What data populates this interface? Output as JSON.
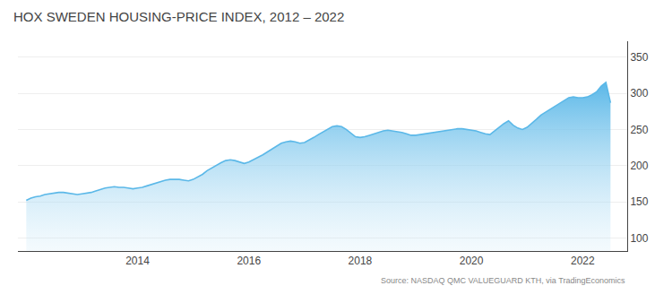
{
  "chart_data": {
    "type": "area",
    "title": "HOX SWEDEN HOUSING-PRICE INDEX, 2012 – 2022",
    "annotations": [
      "Source: NASDAQ QMC VALUEGUARD KTH, via TradingEconomics"
    ],
    "color": "#5BB8E8",
    "x": [
      2012.0,
      2012.083,
      2012.167,
      2012.25,
      2012.333,
      2012.417,
      2012.5,
      2012.583,
      2012.667,
      2012.75,
      2012.833,
      2012.917,
      2013.0,
      2013.083,
      2013.167,
      2013.25,
      2013.333,
      2013.417,
      2013.5,
      2013.583,
      2013.667,
      2013.75,
      2013.833,
      2013.917,
      2014.0,
      2014.083,
      2014.167,
      2014.25,
      2014.333,
      2014.417,
      2014.5,
      2014.583,
      2014.667,
      2014.75,
      2014.833,
      2014.917,
      2015.0,
      2015.083,
      2015.167,
      2015.25,
      2015.333,
      2015.417,
      2015.5,
      2015.583,
      2015.667,
      2015.75,
      2015.833,
      2015.917,
      2016.0,
      2016.083,
      2016.167,
      2016.25,
      2016.333,
      2016.417,
      2016.5,
      2016.583,
      2016.667,
      2016.75,
      2016.833,
      2016.917,
      2017.0,
      2017.083,
      2017.167,
      2017.25,
      2017.333,
      2017.417,
      2017.5,
      2017.583,
      2017.667,
      2017.75,
      2017.833,
      2017.917,
      2018.0,
      2018.083,
      2018.167,
      2018.25,
      2018.333,
      2018.417,
      2018.5,
      2018.583,
      2018.667,
      2018.75,
      2018.833,
      2018.917,
      2019.0,
      2019.083,
      2019.167,
      2019.25,
      2019.333,
      2019.417,
      2019.5,
      2019.583,
      2019.667,
      2019.75,
      2019.833,
      2019.917,
      2020.0,
      2020.083,
      2020.167,
      2020.25,
      2020.333,
      2020.417,
      2020.5,
      2020.583,
      2020.667,
      2020.75,
      2020.833,
      2020.917,
      2021.0,
      2021.083,
      2021.167,
      2021.25,
      2021.333,
      2021.417,
      2021.5,
      2021.583,
      2021.667,
      2021.75,
      2021.833,
      2021.917,
      2022.0,
      2022.083,
      2022.167,
      2022.25,
      2022.333,
      2022.417,
      2022.5
    ],
    "values": [
      152,
      155,
      157,
      158,
      160,
      161,
      162,
      163,
      163,
      162,
      161,
      160,
      161,
      162,
      163,
      165,
      167,
      169,
      170,
      171,
      170,
      170,
      169,
      168,
      169,
      170,
      172,
      174,
      176,
      178,
      180,
      181,
      181,
      181,
      180,
      179,
      181,
      184,
      188,
      193,
      197,
      201,
      204,
      207,
      208,
      207,
      205,
      203,
      205,
      208,
      211,
      215,
      219,
      223,
      227,
      231,
      233,
      234,
      233,
      231,
      232,
      235,
      239,
      243,
      247,
      251,
      254,
      255,
      254,
      250,
      245,
      240,
      239,
      240,
      242,
      244,
      246,
      248,
      249,
      248,
      247,
      246,
      244,
      242,
      242,
      243,
      244,
      245,
      246,
      247,
      248,
      249,
      250,
      251,
      251,
      250,
      249,
      248,
      246,
      244,
      243,
      248,
      254,
      258,
      262,
      256,
      252,
      250,
      253,
      258,
      264,
      270,
      274,
      278,
      282,
      286,
      290,
      294,
      295,
      294,
      294,
      295,
      298,
      302,
      310,
      315,
      287
    ],
    "xlim": [
      2011.85,
      2022.8
    ],
    "xticks": [
      2014,
      2016,
      2018,
      2020,
      2022
    ],
    "ylim": [
      82,
      372
    ],
    "yticks": [
      100,
      150,
      200,
      250,
      300,
      350
    ],
    "grid": true
  }
}
